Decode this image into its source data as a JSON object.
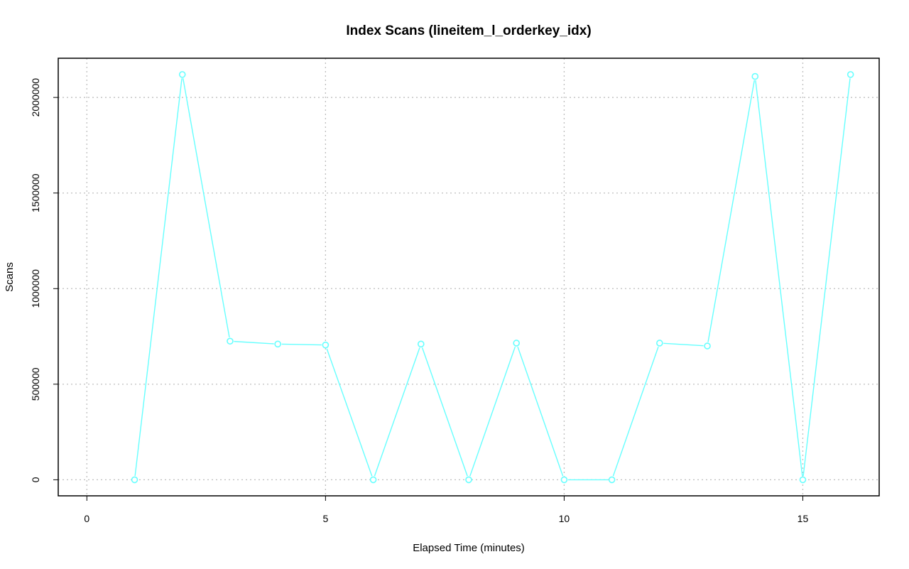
{
  "chart_data": {
    "type": "line",
    "title": "Index Scans (lineitem_l_orderkey_idx)",
    "xlabel": "Elapsed Time (minutes)",
    "ylabel": "Scans",
    "xlim": [
      -0.6,
      16.6
    ],
    "ylim": [
      -84000,
      2205000
    ],
    "xticks": [
      0,
      5,
      10,
      15
    ],
    "yticks": [
      0,
      500000,
      1000000,
      1500000,
      2000000
    ],
    "grid": true,
    "series": [
      {
        "color": "#66ffff",
        "marker": "open-circle",
        "x": [
          1,
          2,
          3,
          4,
          5,
          6,
          7,
          8,
          9,
          10,
          11,
          12,
          13,
          14,
          15,
          16
        ],
        "y": [
          0,
          2120000,
          725000,
          710000,
          705000,
          0,
          710000,
          0,
          715000,
          0,
          0,
          715000,
          700000,
          2110000,
          0,
          2120000
        ]
      }
    ]
  }
}
